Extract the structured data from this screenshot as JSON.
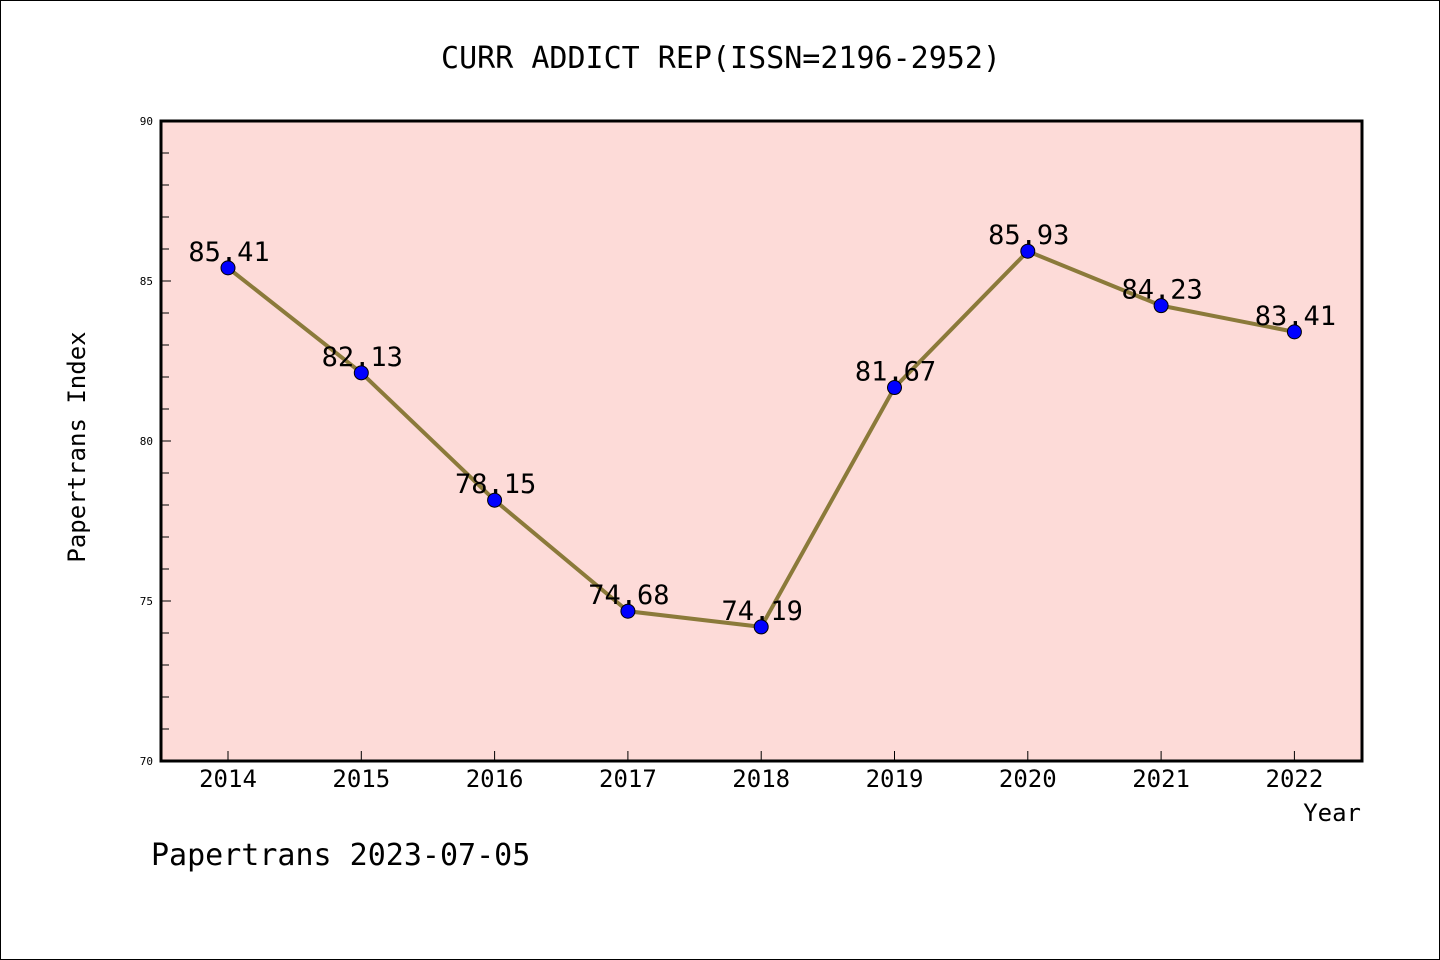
{
  "chart_data": {
    "type": "line",
    "title": "CURR ADDICT REP(ISSN=2196-2952)",
    "xlabel": "Year",
    "ylabel": "Papertrans Index",
    "categories": [
      "2014",
      "2015",
      "2016",
      "2017",
      "2018",
      "2019",
      "2020",
      "2021",
      "2022"
    ],
    "values": [
      85.41,
      82.13,
      78.15,
      74.68,
      74.19,
      81.67,
      85.93,
      84.23,
      83.41
    ],
    "data_labels": [
      "85.41",
      "82.13",
      "78.15",
      "74.68",
      "74.19",
      "81.67",
      "85.93",
      "84.23",
      "83.41"
    ],
    "ylim": [
      70,
      90
    ],
    "yticks": [
      "70",
      "75",
      "80",
      "85",
      "90"
    ],
    "grid": false,
    "legend": "none",
    "colors": {
      "plot_background": "#fddbd8",
      "line": "#8b7a3a",
      "marker": "#0000ff"
    }
  },
  "footer": "Papertrans 2023-07-05"
}
